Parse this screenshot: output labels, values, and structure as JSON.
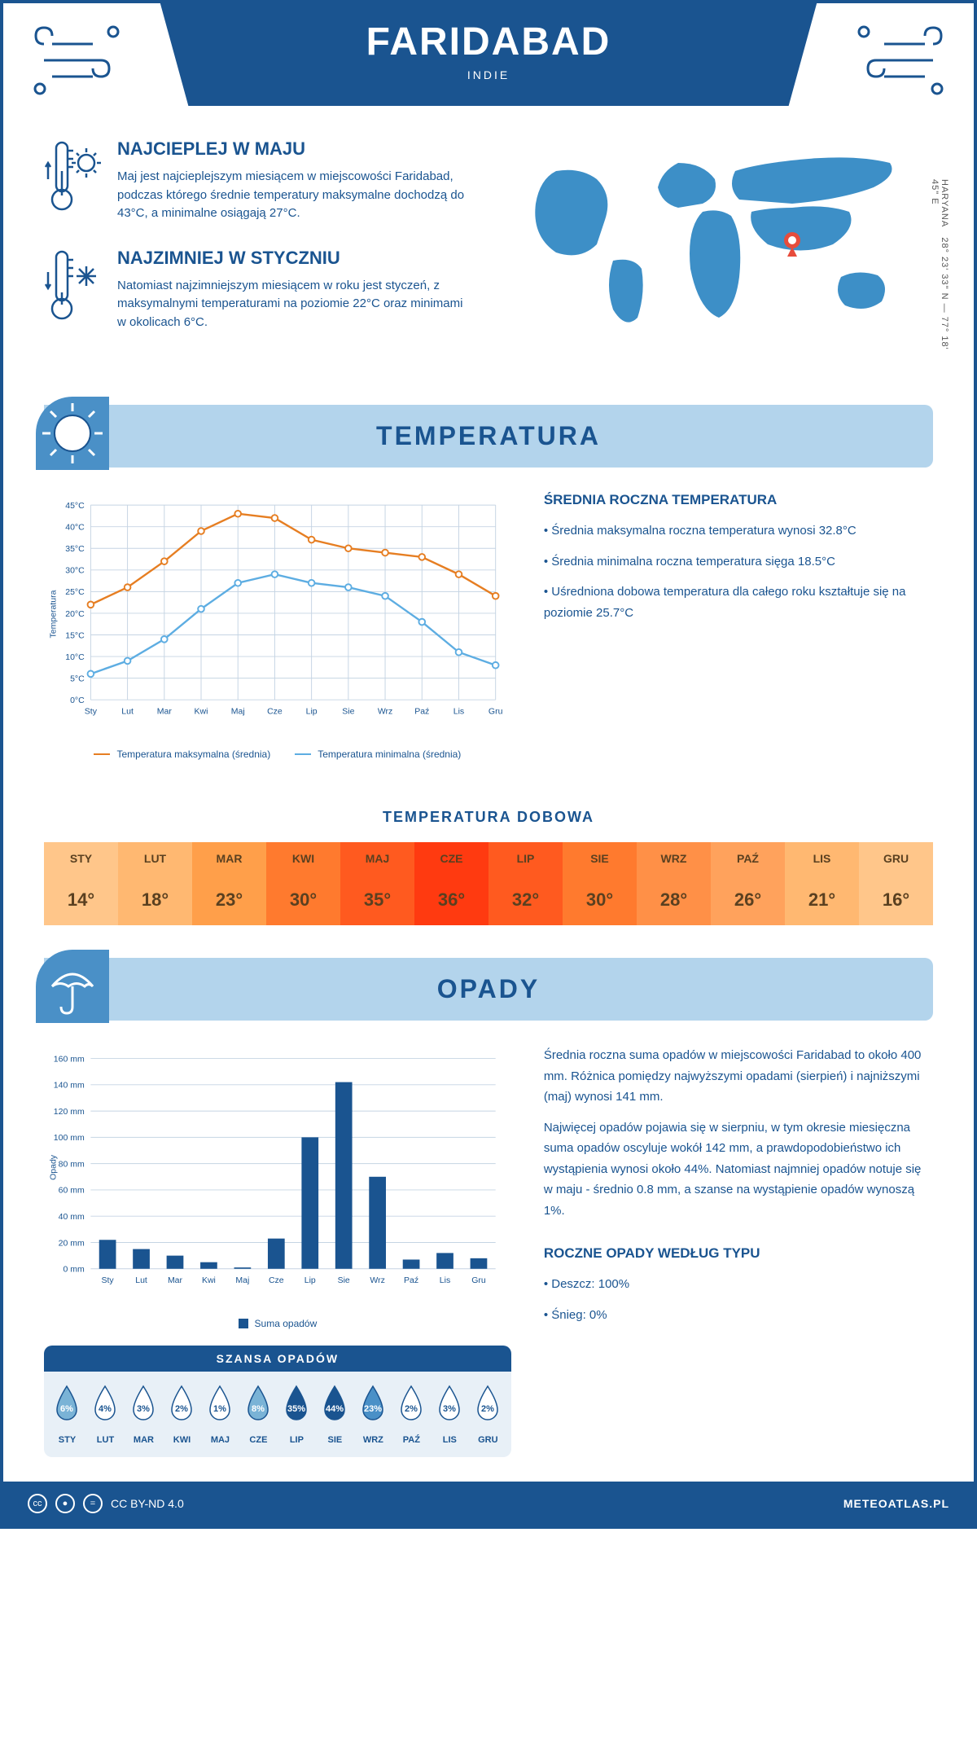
{
  "header": {
    "title": "FARIDABAD",
    "subtitle": "INDIE"
  },
  "coords": {
    "text": "28° 23' 33\" N — 77° 18' 45\" E",
    "region": "HARYANA"
  },
  "map": {
    "marker_color": "#e74c3c",
    "land_color": "#3d8fc7"
  },
  "hot": {
    "title": "NAJCIEPLEJ W MAJU",
    "text": "Maj jest najcieplejszym miesiącem w miejscowości Faridabad, podczas którego średnie temperatury maksymalne dochodzą do 43°C, a minimalne osiągają 27°C."
  },
  "cold": {
    "title": "NAJZIMNIEJ W STYCZNIU",
    "text": "Natomiast najzimniejszym miesiącem w roku jest styczeń, z maksymalnymi temperaturami na poziomie 22°C oraz minimami w okolicach 6°C."
  },
  "temp_section": {
    "title": "TEMPERATURA"
  },
  "temp_chart": {
    "months": [
      "Sty",
      "Lut",
      "Mar",
      "Kwi",
      "Maj",
      "Cze",
      "Lip",
      "Sie",
      "Wrz",
      "Paź",
      "Lis",
      "Gru"
    ],
    "max": [
      22,
      26,
      32,
      39,
      43,
      42,
      37,
      35,
      34,
      33,
      29,
      24
    ],
    "min": [
      6,
      9,
      14,
      21,
      27,
      29,
      27,
      26,
      24,
      18,
      11,
      8
    ],
    "ylabel": "Temperatura",
    "ylim": [
      0,
      45
    ],
    "ytick": 5,
    "max_color": "#e67e22",
    "min_color": "#5dade2",
    "grid_color": "#c5d4e3",
    "bg": "#ffffff",
    "legend_max": "Temperatura maksymalna (średnia)",
    "legend_min": "Temperatura minimalna (średnia)"
  },
  "temp_info": {
    "title": "ŚREDNIA ROCZNA TEMPERATURA",
    "b1": "• Średnia maksymalna roczna temperatura wynosi 32.8°C",
    "b2": "• Średnia minimalna roczna temperatura sięga 18.5°C",
    "b3": "• Uśredniona dobowa temperatura dla całego roku kształtuje się na poziomie 25.7°C"
  },
  "daily": {
    "title": "TEMPERATURA DOBOWA",
    "months": [
      "STY",
      "LUT",
      "MAR",
      "KWI",
      "MAJ",
      "CZE",
      "LIP",
      "SIE",
      "WRZ",
      "PAŹ",
      "LIS",
      "GRU"
    ],
    "values": [
      "14°",
      "18°",
      "23°",
      "30°",
      "35°",
      "36°",
      "32°",
      "30°",
      "28°",
      "26°",
      "21°",
      "16°"
    ],
    "colors": [
      "#ffc68a",
      "#ffb871",
      "#ff9f4a",
      "#ff7a2e",
      "#ff5a1f",
      "#ff3a10",
      "#ff5a1f",
      "#ff7a2e",
      "#ff9047",
      "#ffa25c",
      "#ffb871",
      "#ffc68a"
    ]
  },
  "rain_section": {
    "title": "OPADY"
  },
  "rain_chart": {
    "months": [
      "Sty",
      "Lut",
      "Mar",
      "Kwi",
      "Maj",
      "Cze",
      "Lip",
      "Sie",
      "Wrz",
      "Paź",
      "Lis",
      "Gru"
    ],
    "values": [
      22,
      15,
      10,
      5,
      1,
      23,
      100,
      142,
      70,
      7,
      12,
      8
    ],
    "ylabel": "Opady",
    "ylim": [
      0,
      160
    ],
    "ytick": 20,
    "bar_color": "#1a5490",
    "grid_color": "#c5d4e3",
    "legend": "Suma opadów"
  },
  "rain_info": {
    "p1": "Średnia roczna suma opadów w miejscowości Faridabad to około 400 mm. Różnica pomiędzy najwyższymi opadami (sierpień) i najniższymi (maj) wynosi 141 mm.",
    "p2": "Najwięcej opadów pojawia się w sierpniu, w tym okresie miesięczna suma opadów oscyluje wokół 142 mm, a prawdopodobieństwo ich wystąpienia wynosi około 44%. Natomiast najmniej opadów notuje się w maju - średnio 0.8 mm, a szanse na wystąpienie opadów wynoszą 1%.",
    "title": "ROCZNE OPADY WEDŁUG TYPU",
    "rain": "• Deszcz: 100%",
    "snow": "• Śnieg: 0%"
  },
  "chance": {
    "title": "SZANSA OPADÓW",
    "months": [
      "STY",
      "LUT",
      "MAR",
      "KWI",
      "MAJ",
      "CZE",
      "LIP",
      "SIE",
      "WRZ",
      "PAŹ",
      "LIS",
      "GRU"
    ],
    "values": [
      "6%",
      "4%",
      "3%",
      "2%",
      "1%",
      "8%",
      "35%",
      "44%",
      "23%",
      "2%",
      "3%",
      "2%"
    ],
    "fills": [
      "#7ab3d6",
      "#fff",
      "#fff",
      "#fff",
      "#fff",
      "#7ab3d6",
      "#1a5490",
      "#1a5490",
      "#4a90c7",
      "#fff",
      "#fff",
      "#fff"
    ],
    "text_colors": [
      "#fff",
      "#1a5490",
      "#1a5490",
      "#1a5490",
      "#1a5490",
      "#fff",
      "#fff",
      "#fff",
      "#fff",
      "#1a5490",
      "#1a5490",
      "#1a5490"
    ]
  },
  "footer": {
    "license": "CC BY-ND 4.0",
    "brand": "METEOATLAS.PL"
  }
}
